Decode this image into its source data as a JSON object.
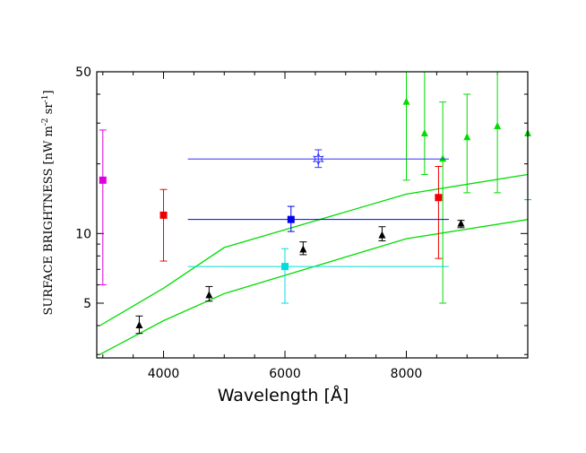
{
  "chart_data": {
    "type": "scatter",
    "xlabel": "Wavelength  [Å]",
    "ylabel": {
      "main": "SURFACE BRIGHTNESS  [nW m",
      "exp1": "-2",
      "mid": " sr",
      "exp2": "-1",
      "end": "]"
    },
    "xlim": [
      2900,
      10000
    ],
    "ylim": [
      2.9,
      50
    ],
    "yscale": "log",
    "x_ticks": [
      4000,
      6000,
      8000
    ],
    "y_tick_labels": [
      5,
      10,
      50
    ],
    "y_minor_ticks": [
      3,
      4,
      5,
      6,
      7,
      8,
      9,
      10,
      20,
      30,
      40,
      50
    ],
    "series": [
      {
        "name": "upper model",
        "kind": "line",
        "color": "#00dd00",
        "points": [
          [
            2950,
            4.0
          ],
          [
            4000,
            5.8
          ],
          [
            5000,
            8.7
          ],
          [
            8000,
            14.8
          ],
          [
            10000,
            18.0
          ]
        ]
      },
      {
        "name": "lower model",
        "kind": "line",
        "color": "#00dd00",
        "points": [
          [
            2950,
            3.0
          ],
          [
            4000,
            4.2
          ],
          [
            5000,
            5.5
          ],
          [
            8000,
            9.5
          ],
          [
            10000,
            11.5
          ]
        ]
      },
      {
        "name": "black triangles",
        "kind": "errorbar",
        "marker": "triangle",
        "color": "#000000",
        "points": [
          {
            "x": 3600,
            "y": 4.0,
            "ylo": 3.7,
            "yhi": 4.4
          },
          {
            "x": 4750,
            "y": 5.4,
            "ylo": 5.1,
            "yhi": 5.9
          },
          {
            "x": 6300,
            "y": 8.5,
            "ylo": 8.1,
            "yhi": 9.2
          },
          {
            "x": 7600,
            "y": 9.8,
            "ylo": 9.3,
            "yhi": 10.7
          },
          {
            "x": 8900,
            "y": 11.0,
            "ylo": 10.6,
            "yhi": 11.4
          }
        ]
      },
      {
        "name": "green triangles",
        "kind": "errorbar",
        "marker": "triangle",
        "color": "#00dd00",
        "points": [
          {
            "x": 8000,
            "y": 37,
            "ylo": 17,
            "yhi": 50
          },
          {
            "x": 8300,
            "y": 27,
            "ylo": 18,
            "yhi": 50
          },
          {
            "x": 8600,
            "y": 21,
            "ylo": 5,
            "yhi": 37
          },
          {
            "x": 9000,
            "y": 26,
            "ylo": 15,
            "yhi": 40
          },
          {
            "x": 9500,
            "y": 29,
            "ylo": 15,
            "yhi": 50
          },
          {
            "x": 10000,
            "y": 27,
            "ylo": 14,
            "yhi": 50
          }
        ]
      },
      {
        "name": "magenta",
        "kind": "errorbar",
        "marker": "square",
        "color": "#dd00dd",
        "points": [
          {
            "x": 3000,
            "y": 17,
            "ylo": 6,
            "yhi": 28
          }
        ]
      },
      {
        "name": "red",
        "kind": "errorbar",
        "marker": "square",
        "color": "#ee0000",
        "points": [
          {
            "x": 4000,
            "y": 12,
            "ylo": 7.6,
            "yhi": 15.5
          },
          {
            "x": 8530,
            "y": 14.3,
            "ylo": 7.8,
            "yhi": 19.5
          }
        ]
      },
      {
        "name": "blue square",
        "kind": "errorbar",
        "marker": "square",
        "color": "#0000ee",
        "xrange": [
          4400,
          8700
        ],
        "points": [
          {
            "x": 6100,
            "y": 11.5,
            "ylo": 10.2,
            "yhi": 13.1
          }
        ]
      },
      {
        "name": "blue star",
        "kind": "errorbar",
        "marker": "star",
        "color": "#3333ff",
        "xrange": [
          4400,
          8700
        ],
        "points": [
          {
            "x": 6550,
            "y": 21,
            "ylo": 19.3,
            "yhi": 23
          }
        ]
      },
      {
        "name": "cyan",
        "kind": "errorbar",
        "marker": "square",
        "color": "#00dddd",
        "xrange": [
          4400,
          8700
        ],
        "points": [
          {
            "x": 6000,
            "y": 7.2,
            "ylo": 5.0,
            "yhi": 8.6
          }
        ]
      }
    ]
  }
}
